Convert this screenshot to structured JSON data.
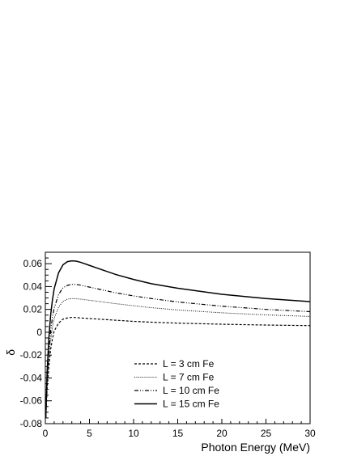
{
  "chart_data": {
    "type": "line",
    "title": "",
    "xlabel": "Photon Energy (MeV)",
    "ylabel": "δ",
    "xlim": [
      0,
      30
    ],
    "ylim": [
      -0.08,
      0.07
    ],
    "xticks": [
      0,
      5,
      10,
      15,
      20,
      25,
      30
    ],
    "yticks": [
      -0.08,
      -0.06,
      -0.04,
      -0.02,
      0,
      0.02,
      0.04,
      0.06
    ],
    "ytick_labels": [
      "-0.08",
      "-0.06",
      "-0.04",
      "-0.02",
      "0",
      "0.02",
      "0.04",
      "0.06"
    ],
    "xtick_labels": [
      "0",
      "5",
      "10",
      "15",
      "20",
      "25",
      "30"
    ],
    "grid": false,
    "legend_position": "bottom-center",
    "series": [
      {
        "name": "L = 3 cm Fe",
        "line_style": "dashed",
        "x": [
          0.05,
          0.2,
          0.4,
          0.6,
          0.8,
          1.0,
          1.5,
          2.0,
          2.5,
          3.0,
          3.5,
          4.0,
          5.0,
          6.0,
          8.0,
          10.0,
          12.0,
          15.0,
          20.0,
          25.0,
          30.0
        ],
        "y": [
          -0.075,
          -0.05,
          -0.03,
          -0.015,
          -0.006,
          0.001,
          0.008,
          0.0115,
          0.0125,
          0.013,
          0.0128,
          0.0125,
          0.012,
          0.0115,
          0.0105,
          0.0095,
          0.0088,
          0.008,
          0.007,
          0.0063,
          0.0058
        ]
      },
      {
        "name": "L = 7 cm Fe",
        "line_style": "dotted",
        "x": [
          0.05,
          0.2,
          0.4,
          0.6,
          0.8,
          1.0,
          1.5,
          2.0,
          2.5,
          3.0,
          3.5,
          4.0,
          5.0,
          6.0,
          8.0,
          10.0,
          12.0,
          15.0,
          20.0,
          25.0,
          30.0
        ],
        "y": [
          -0.075,
          -0.045,
          -0.022,
          -0.007,
          0.004,
          0.012,
          0.022,
          0.027,
          0.029,
          0.0295,
          0.0293,
          0.029,
          0.028,
          0.027,
          0.025,
          0.0232,
          0.0215,
          0.0195,
          0.017,
          0.0152,
          0.0138
        ]
      },
      {
        "name": "L = 10 cm Fe",
        "line_style": "dash-dot",
        "x": [
          0.05,
          0.2,
          0.4,
          0.6,
          0.8,
          1.0,
          1.5,
          2.0,
          2.5,
          3.0,
          3.5,
          4.0,
          5.0,
          6.0,
          8.0,
          10.0,
          12.0,
          15.0,
          20.0,
          25.0,
          30.0
        ],
        "y": [
          -0.075,
          -0.042,
          -0.016,
          0.001,
          0.013,
          0.021,
          0.033,
          0.039,
          0.041,
          0.042,
          0.0418,
          0.0412,
          0.0395,
          0.0378,
          0.0345,
          0.0318,
          0.0295,
          0.0265,
          0.0228,
          0.02,
          0.018
        ]
      },
      {
        "name": "L = 15 cm Fe",
        "line_style": "solid",
        "x": [
          0.05,
          0.2,
          0.4,
          0.6,
          0.8,
          1.0,
          1.5,
          2.0,
          2.5,
          3.0,
          3.5,
          4.0,
          5.0,
          6.0,
          8.0,
          10.0,
          12.0,
          15.0,
          20.0,
          25.0,
          30.0
        ],
        "y": [
          -0.075,
          -0.035,
          -0.005,
          0.015,
          0.028,
          0.038,
          0.052,
          0.059,
          0.0618,
          0.0625,
          0.0622,
          0.0612,
          0.0585,
          0.0558,
          0.0505,
          0.0462,
          0.0425,
          0.0385,
          0.0332,
          0.0295,
          0.0268
        ]
      }
    ]
  }
}
